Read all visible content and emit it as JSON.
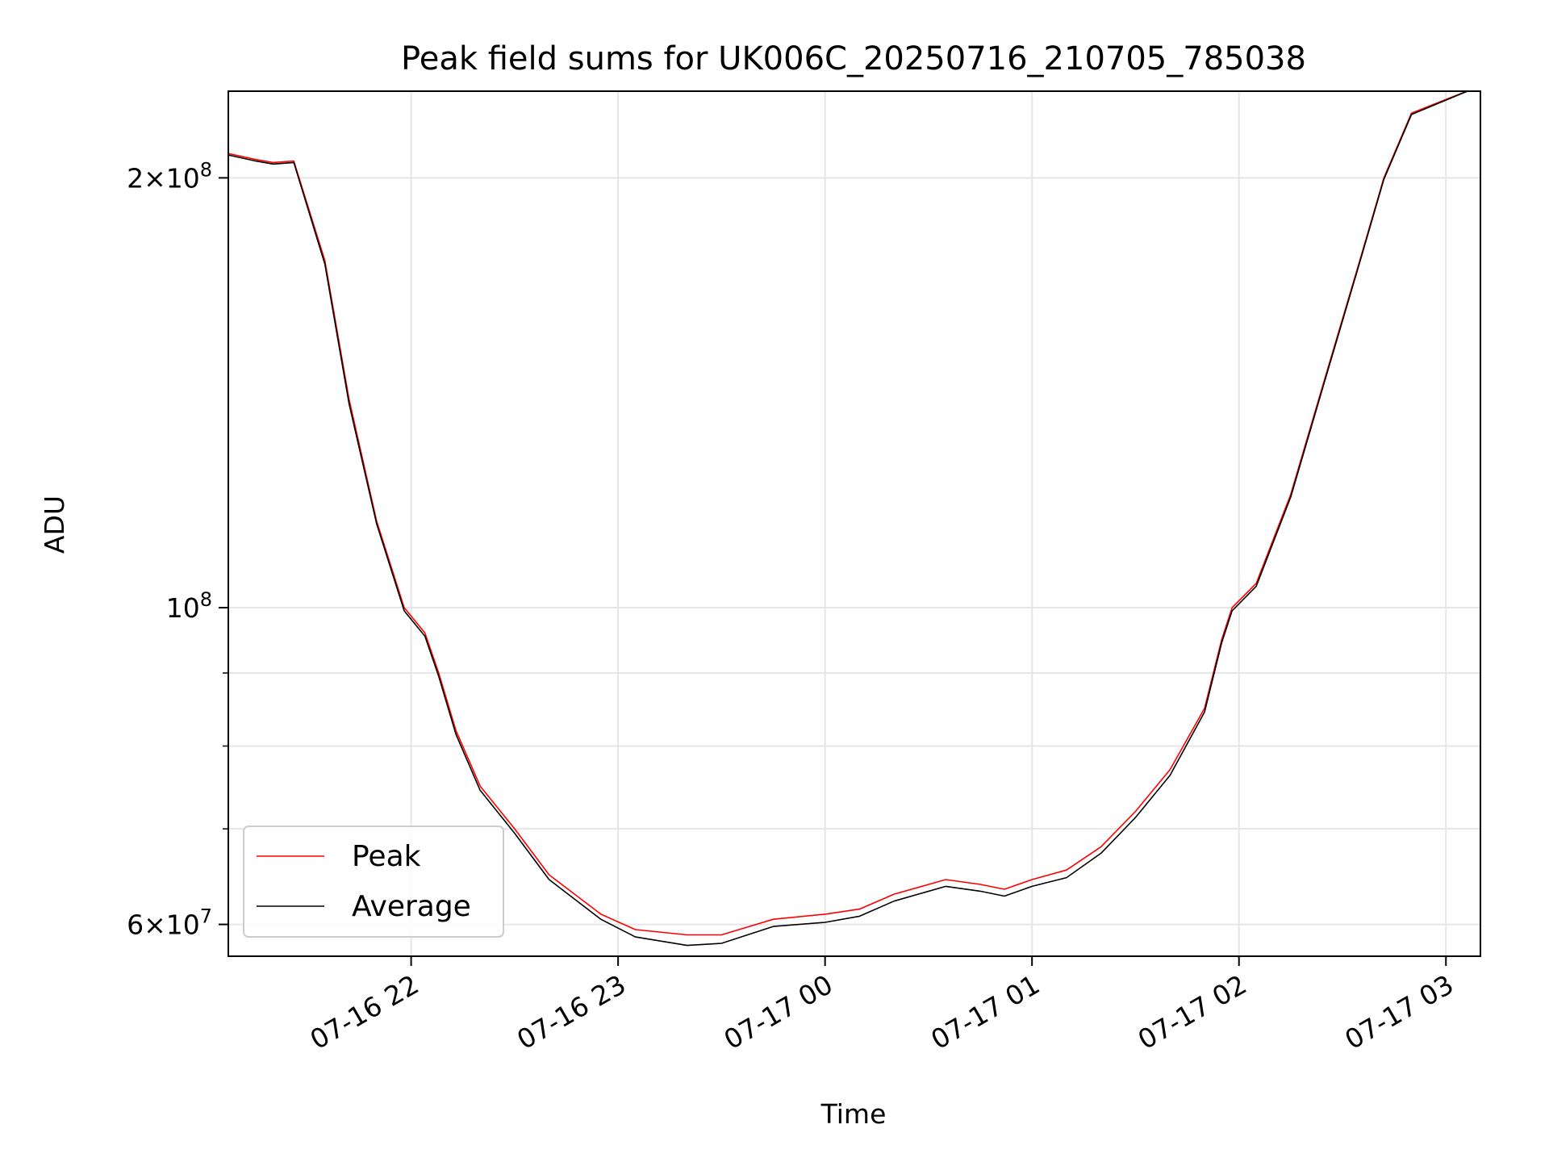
{
  "chart_data": {
    "type": "line",
    "title": "Peak field sums for UK006C_20250716_210705_785038",
    "xlabel": "Time",
    "ylabel": "ADU",
    "y_scale": "log",
    "x_range": [
      "2025-07-16 21:07",
      "2025-07-17 03:10"
    ],
    "ylim": [
      57000000,
      230000000
    ],
    "grid": true,
    "legend_position": "lower-left",
    "x_ticks": [
      "07-16 22",
      "07-16 23",
      "07-17 00",
      "07-17 01",
      "07-17 02",
      "07-17 03"
    ],
    "y_ticks": [
      {
        "value": 60000000,
        "mantissa": "6",
        "exponent": "7"
      },
      {
        "value": 100000000,
        "mantissa": "",
        "exponent": "8"
      },
      {
        "value": 200000000,
        "mantissa": "2",
        "exponent": "8"
      }
    ],
    "y_minor_ticks": [
      70000000,
      80000000,
      90000000
    ],
    "series": [
      {
        "name": "Peak",
        "color": "#ff0000",
        "x": [
          "2025-07-16 21:07",
          "2025-07-16 21:15",
          "2025-07-16 21:20",
          "2025-07-16 21:26",
          "2025-07-16 21:35",
          "2025-07-16 21:42",
          "2025-07-16 21:50",
          "2025-07-16 21:58",
          "2025-07-16 22:04",
          "2025-07-16 22:08",
          "2025-07-16 22:13",
          "2025-07-16 22:20",
          "2025-07-16 22:30",
          "2025-07-16 22:40",
          "2025-07-16 22:55",
          "2025-07-16 23:05",
          "2025-07-16 23:20",
          "2025-07-16 23:30",
          "2025-07-16 23:45",
          "2025-07-17 00:00",
          "2025-07-17 00:10",
          "2025-07-17 00:20",
          "2025-07-17 00:35",
          "2025-07-17 00:45",
          "2025-07-17 00:52",
          "2025-07-17 01:00",
          "2025-07-17 01:10",
          "2025-07-17 01:20",
          "2025-07-17 01:30",
          "2025-07-17 01:40",
          "2025-07-17 01:50",
          "2025-07-17 01:55",
          "2025-07-17 01:58",
          "2025-07-17 02:05",
          "2025-07-17 02:15",
          "2025-07-17 02:25",
          "2025-07-17 02:35",
          "2025-07-17 02:42",
          "2025-07-17 02:50",
          "2025-07-17 03:10"
        ],
        "y": [
          208000000,
          206000000,
          205000000,
          205500000,
          175000000,
          140000000,
          115000000,
          100000000,
          96000000,
          90000000,
          82000000,
          75000000,
          70000000,
          65000000,
          61000000,
          59500000,
          59000000,
          59000000,
          60500000,
          61000000,
          61500000,
          63000000,
          64500000,
          64000000,
          63500000,
          64500000,
          65500000,
          68000000,
          72000000,
          77000000,
          85000000,
          95000000,
          100000000,
          104000000,
          120000000,
          145000000,
          175000000,
          200000000,
          222000000,
          232000000
        ]
      },
      {
        "name": "Average",
        "color": "#000000",
        "x": [
          "2025-07-16 21:07",
          "2025-07-16 21:15",
          "2025-07-16 21:20",
          "2025-07-16 21:26",
          "2025-07-16 21:35",
          "2025-07-16 21:42",
          "2025-07-16 21:50",
          "2025-07-16 21:58",
          "2025-07-16 22:04",
          "2025-07-16 22:08",
          "2025-07-16 22:13",
          "2025-07-16 22:20",
          "2025-07-16 22:30",
          "2025-07-16 22:40",
          "2025-07-16 22:55",
          "2025-07-16 23:05",
          "2025-07-16 23:20",
          "2025-07-16 23:30",
          "2025-07-16 23:45",
          "2025-07-17 00:00",
          "2025-07-17 00:10",
          "2025-07-17 00:20",
          "2025-07-17 00:35",
          "2025-07-17 00:45",
          "2025-07-17 00:52",
          "2025-07-17 01:00",
          "2025-07-17 01:10",
          "2025-07-17 01:20",
          "2025-07-17 01:30",
          "2025-07-17 01:40",
          "2025-07-17 01:50",
          "2025-07-17 01:55",
          "2025-07-17 01:58",
          "2025-07-17 02:05",
          "2025-07-17 02:15",
          "2025-07-17 02:25",
          "2025-07-17 02:35",
          "2025-07-17 02:42",
          "2025-07-17 02:50",
          "2025-07-17 03:10"
        ],
        "y": [
          207500000,
          205500000,
          204500000,
          205000000,
          174000000,
          139000000,
          114500000,
          99500000,
          95500000,
          89500000,
          81500000,
          74500000,
          69500000,
          64500000,
          60500000,
          58800000,
          58000000,
          58200000,
          59800000,
          60200000,
          60800000,
          62300000,
          63800000,
          63300000,
          62800000,
          63800000,
          64700000,
          67300000,
          71300000,
          76300000,
          84500000,
          94500000,
          99500000,
          103500000,
          119500000,
          144500000,
          174500000,
          199500000,
          221500000,
          232000000
        ]
      }
    ]
  }
}
